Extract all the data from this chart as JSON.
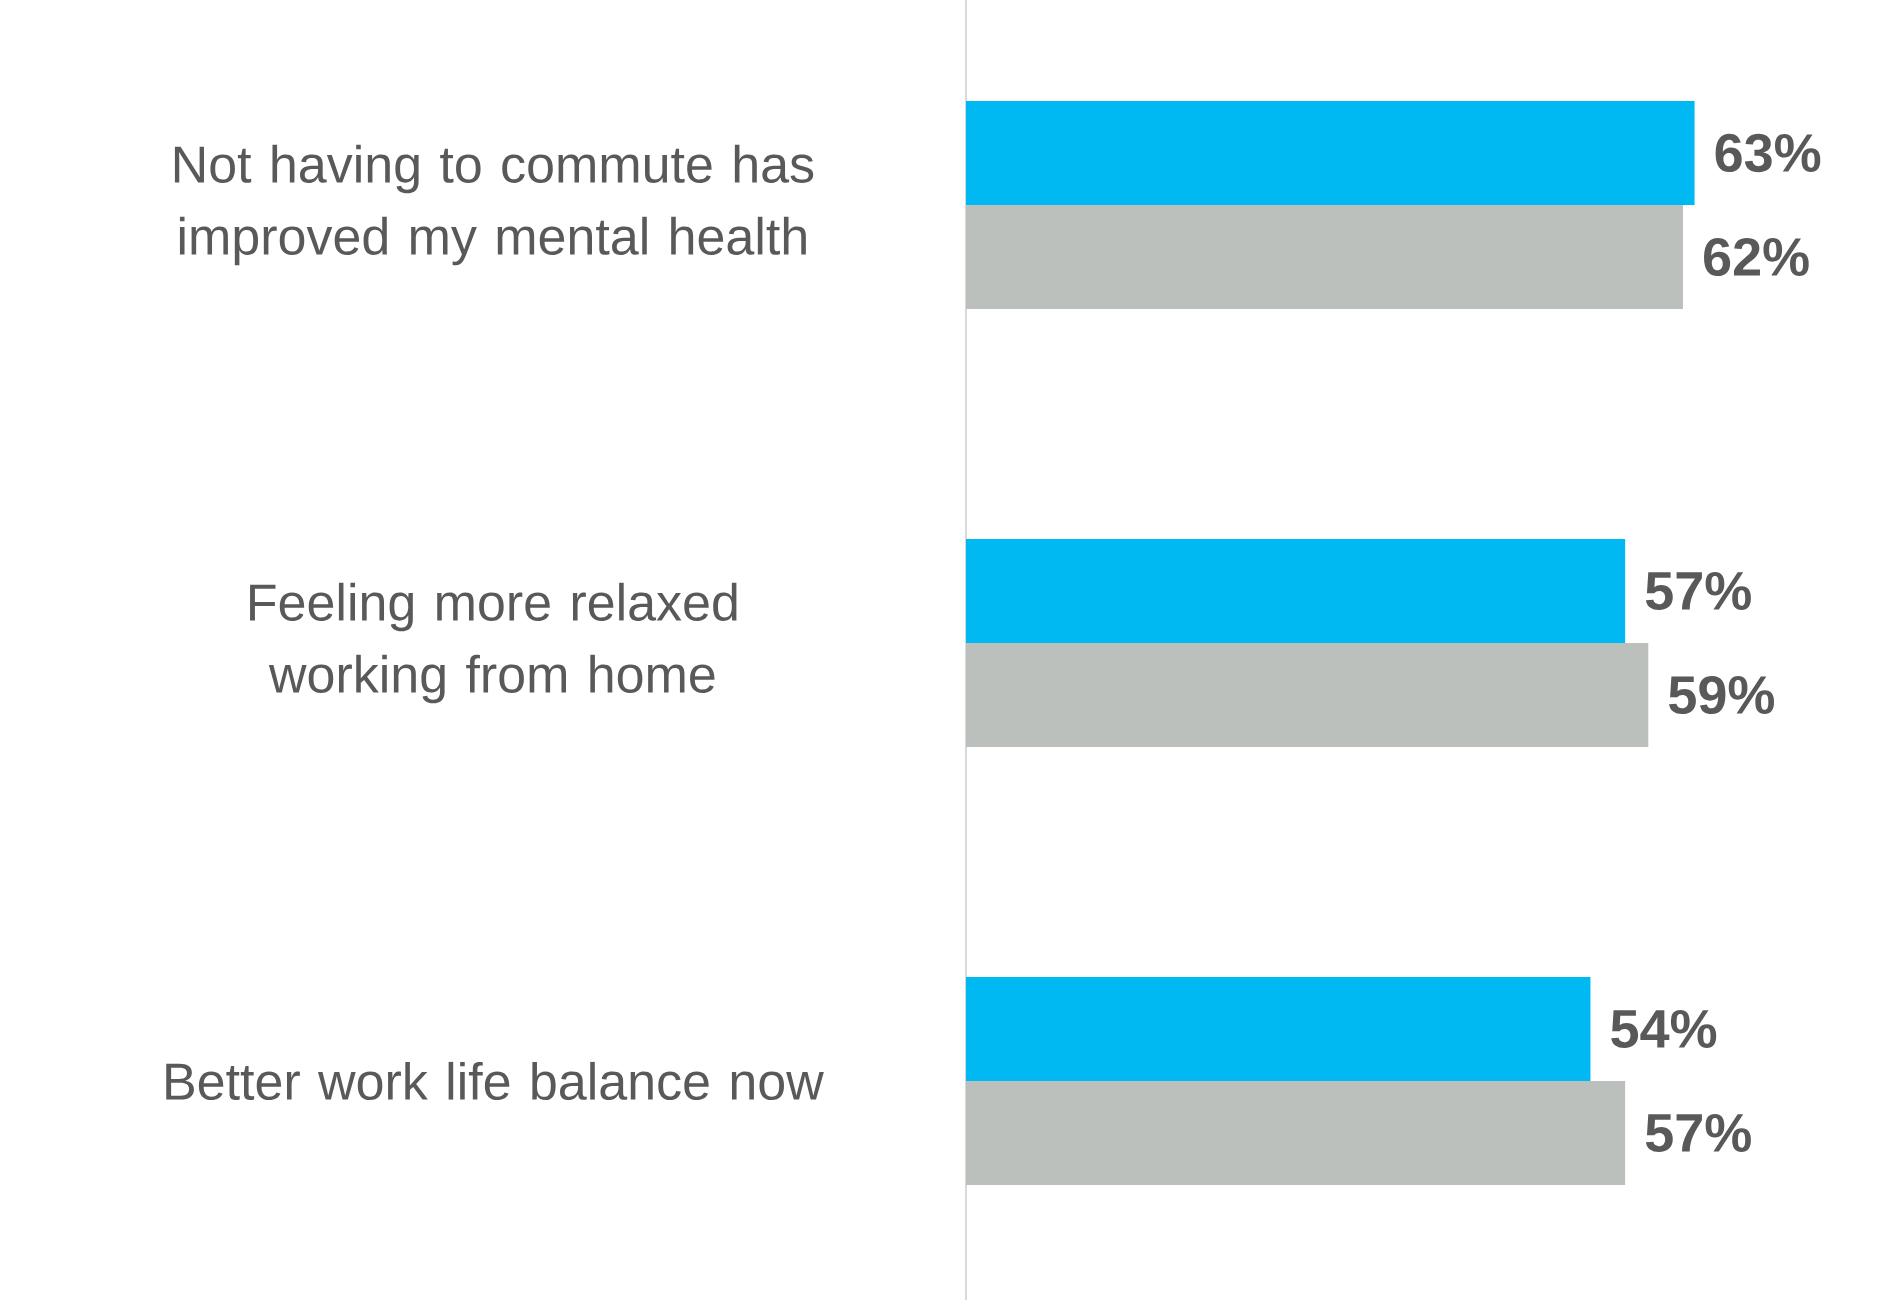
{
  "chart_data": {
    "type": "bar",
    "orientation": "horizontal",
    "categories": [
      "Not having to commute has improved my mental health",
      "Feeling more relaxed working from home",
      "Better work life balance now"
    ],
    "series": [
      {
        "color": "#00b9f2",
        "values": [
          63,
          57,
          54
        ],
        "value_labels": [
          "63%",
          "57%",
          "54%"
        ]
      },
      {
        "color": "#bcc0bc",
        "values": [
          62,
          59,
          57
        ],
        "value_labels": [
          "62%",
          "59%",
          "57%"
        ]
      }
    ]
  }
}
